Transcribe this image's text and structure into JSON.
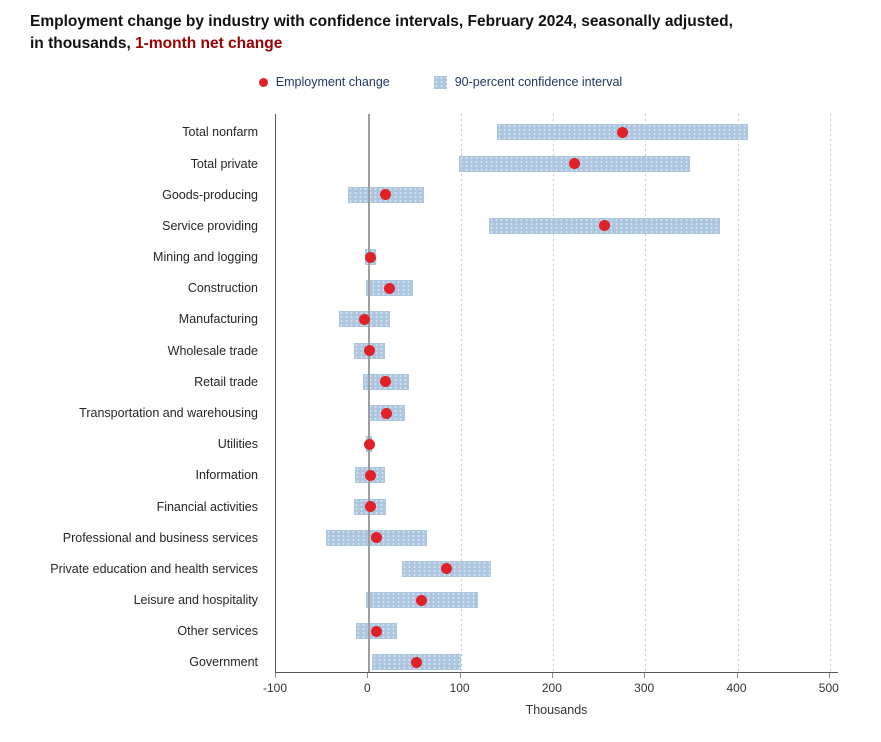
{
  "title": {
    "line1": "Employment change by industry with confidence intervals, February 2024, seasonally adjusted,",
    "line2_prefix": "in thousands, ",
    "highlight": "1-month net change"
  },
  "legend": {
    "items": [
      {
        "label": "Employment change",
        "marker": "red-dot"
      },
      {
        "label": "90-percent confidence interval",
        "marker": "light-blue-bar"
      }
    ]
  },
  "x_axis": {
    "ticks": [
      "-100",
      "0",
      "100",
      "200",
      "300",
      "400",
      "500"
    ],
    "title": "Thousands"
  },
  "colors": {
    "dot_red": "#e02128",
    "ci_blue": "#adc6e0",
    "legend_text": "#1f3864",
    "title_red": "#990000",
    "grid": "#c9c9c9",
    "zero_line": "#9e9e9e",
    "axis_line": "#595959"
  },
  "chart_data": {
    "type": "scatter",
    "subtype": "dot_plot_with_confidence_intervals",
    "title": "Employment change by industry with confidence intervals, February 2024, seasonally adjusted, in thousands, 1-month net change",
    "xlabel": "Thousands",
    "xlim": [
      -100,
      511
    ],
    "grid": "vertical dashed gridlines at 100,200,300,400,500; solid gray line at 0",
    "legend_position": "top-center",
    "categories": [
      "Total nonfarm",
      "Total private",
      "Goods-producing",
      "Service providing",
      "Mining and logging",
      "Construction",
      "Manufacturing",
      "Wholesale trade",
      "Retail trade",
      "Transportation and warehousing",
      "Utilities",
      "Information",
      "Financial activities",
      "Professional and business services",
      "Private education and health services",
      "Leisure and hospitality",
      "Other services",
      "Government"
    ],
    "series": [
      {
        "name": "Employment change",
        "marker": "red-dot",
        "values": [
          275,
          223,
          19,
          256,
          2,
          23,
          -4,
          1,
          19,
          20,
          1,
          2,
          2,
          9,
          85,
          58,
          9,
          52
        ]
      },
      {
        "name": "90-percent confidence interval",
        "marker": "blue-bar",
        "low": [
          139,
          98,
          -22,
          131,
          -4,
          -2,
          -32,
          -16,
          -6,
          0,
          -2,
          -14,
          -15,
          -46,
          37,
          -3,
          -13,
          4
        ],
        "high": [
          411,
          348,
          60,
          381,
          8,
          48,
          24,
          18,
          44,
          40,
          4,
          18,
          19,
          64,
          133,
          119,
          31,
          100
        ]
      }
    ]
  }
}
